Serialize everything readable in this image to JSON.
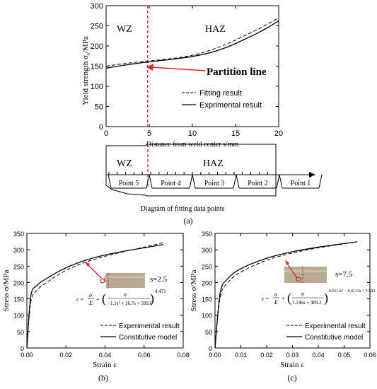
{
  "chart_data": [
    {
      "type": "line",
      "panel": "a-top",
      "xlabel": "Distance from weld center s/mm",
      "ylabel": "Yield strength σs/MPa",
      "xlim": [
        0,
        20
      ],
      "ylim": [
        0,
        300
      ],
      "xticks": [
        "0",
        "5",
        "10",
        "15",
        "20"
      ],
      "yticks": [
        "0",
        "50",
        "100",
        "150",
        "200",
        "250",
        "300"
      ],
      "region_labels": [
        "WZ",
        "HAZ"
      ],
      "annotation": "Partition line",
      "partition_x": 4.8,
      "legend": [
        "Fitting result",
        "Exprimental result"
      ],
      "legend_position": "right-middle",
      "series": [
        {
          "name": "Fitting result",
          "style": "dashed",
          "x": [
            0,
            2,
            4,
            6,
            8,
            10,
            12,
            14,
            16,
            18,
            20
          ],
          "y": [
            150,
            156,
            161,
            165,
            170,
            177,
            189,
            205,
            225,
            246,
            270
          ]
        },
        {
          "name": "Exprimental result",
          "style": "solid",
          "x": [
            0,
            2,
            4,
            6,
            8,
            10,
            12,
            14,
            16,
            18,
            20
          ],
          "y": [
            145,
            152,
            158,
            163,
            168,
            174,
            183,
            197,
            216,
            237,
            262
          ]
        }
      ]
    },
    {
      "type": "line",
      "panel": "b",
      "xlabel": "Strain ε",
      "ylabel": "Stress σ/MPa",
      "xlim": [
        0,
        0.08
      ],
      "ylim": [
        0,
        350
      ],
      "xticks": [
        "0.00",
        "0.02",
        "0.04",
        "0.06",
        "0.08"
      ],
      "yticks": [
        "0",
        "50",
        "100",
        "150",
        "200",
        "250",
        "300",
        "350"
      ],
      "annotation": "s=2.5",
      "equation": "ε = σ/E + (σ / (−1.1s² + 16.7s + 599.6))^4.471",
      "legend": [
        "Experimental result",
        "Constitutive model"
      ],
      "legend_position": "bottom-right",
      "series": [
        {
          "name": "Experimental result",
          "style": "dashed",
          "x": [
            0,
            0.002,
            0.005,
            0.01,
            0.02,
            0.03,
            0.04,
            0.05,
            0.06,
            0.07
          ],
          "y": [
            0,
            140,
            175,
            200,
            237,
            262,
            280,
            295,
            308,
            322
          ]
        },
        {
          "name": "Constitutive model",
          "style": "solid",
          "x": [
            0,
            0.002,
            0.005,
            0.01,
            0.02,
            0.03,
            0.04,
            0.05,
            0.06,
            0.07
          ],
          "y": [
            0,
            158,
            190,
            212,
            245,
            268,
            284,
            296,
            306,
            316
          ]
        }
      ]
    },
    {
      "type": "line",
      "panel": "c",
      "xlabel": "Strain ε",
      "ylabel": "Stress σ/MPa",
      "xlim": [
        0,
        0.06
      ],
      "ylim": [
        0,
        350
      ],
      "xticks": [
        "0.00",
        "0.01",
        "0.02",
        "0.03",
        "0.04",
        "0.05",
        "0.06"
      ],
      "yticks": [
        "0",
        "50",
        "100",
        "150",
        "200",
        "250",
        "300",
        "350"
      ],
      "annotation": "s=7.5",
      "equation": "ε = σ/E + (σ / (1.146s + 489.2))^(0.0111s² − 0.0113s + 5.583)",
      "legend": [
        "Experimental result",
        "Constitutive model"
      ],
      "legend_position": "bottom-right",
      "series": [
        {
          "name": "Experimental result",
          "style": "dashed",
          "x": [
            0,
            0.002,
            0.005,
            0.01,
            0.02,
            0.03,
            0.04,
            0.05,
            0.055
          ],
          "y": [
            0,
            155,
            200,
            232,
            268,
            290,
            306,
            318,
            325
          ]
        },
        {
          "name": "Constitutive model",
          "style": "solid",
          "x": [
            0,
            0.002,
            0.005,
            0.01,
            0.02,
            0.03,
            0.04,
            0.05,
            0.055
          ],
          "y": [
            0,
            168,
            212,
            242,
            274,
            294,
            308,
            319,
            324
          ]
        }
      ]
    }
  ],
  "diagram": {
    "labels": [
      "WZ",
      "HAZ"
    ],
    "points": [
      "Point 5",
      "Point 4",
      "Point 3",
      "Point 2",
      "Point 1"
    ],
    "caption": "Diagram of fitting data points"
  },
  "captions": {
    "a": "(a)",
    "b": "(b)",
    "c": "(c)"
  }
}
